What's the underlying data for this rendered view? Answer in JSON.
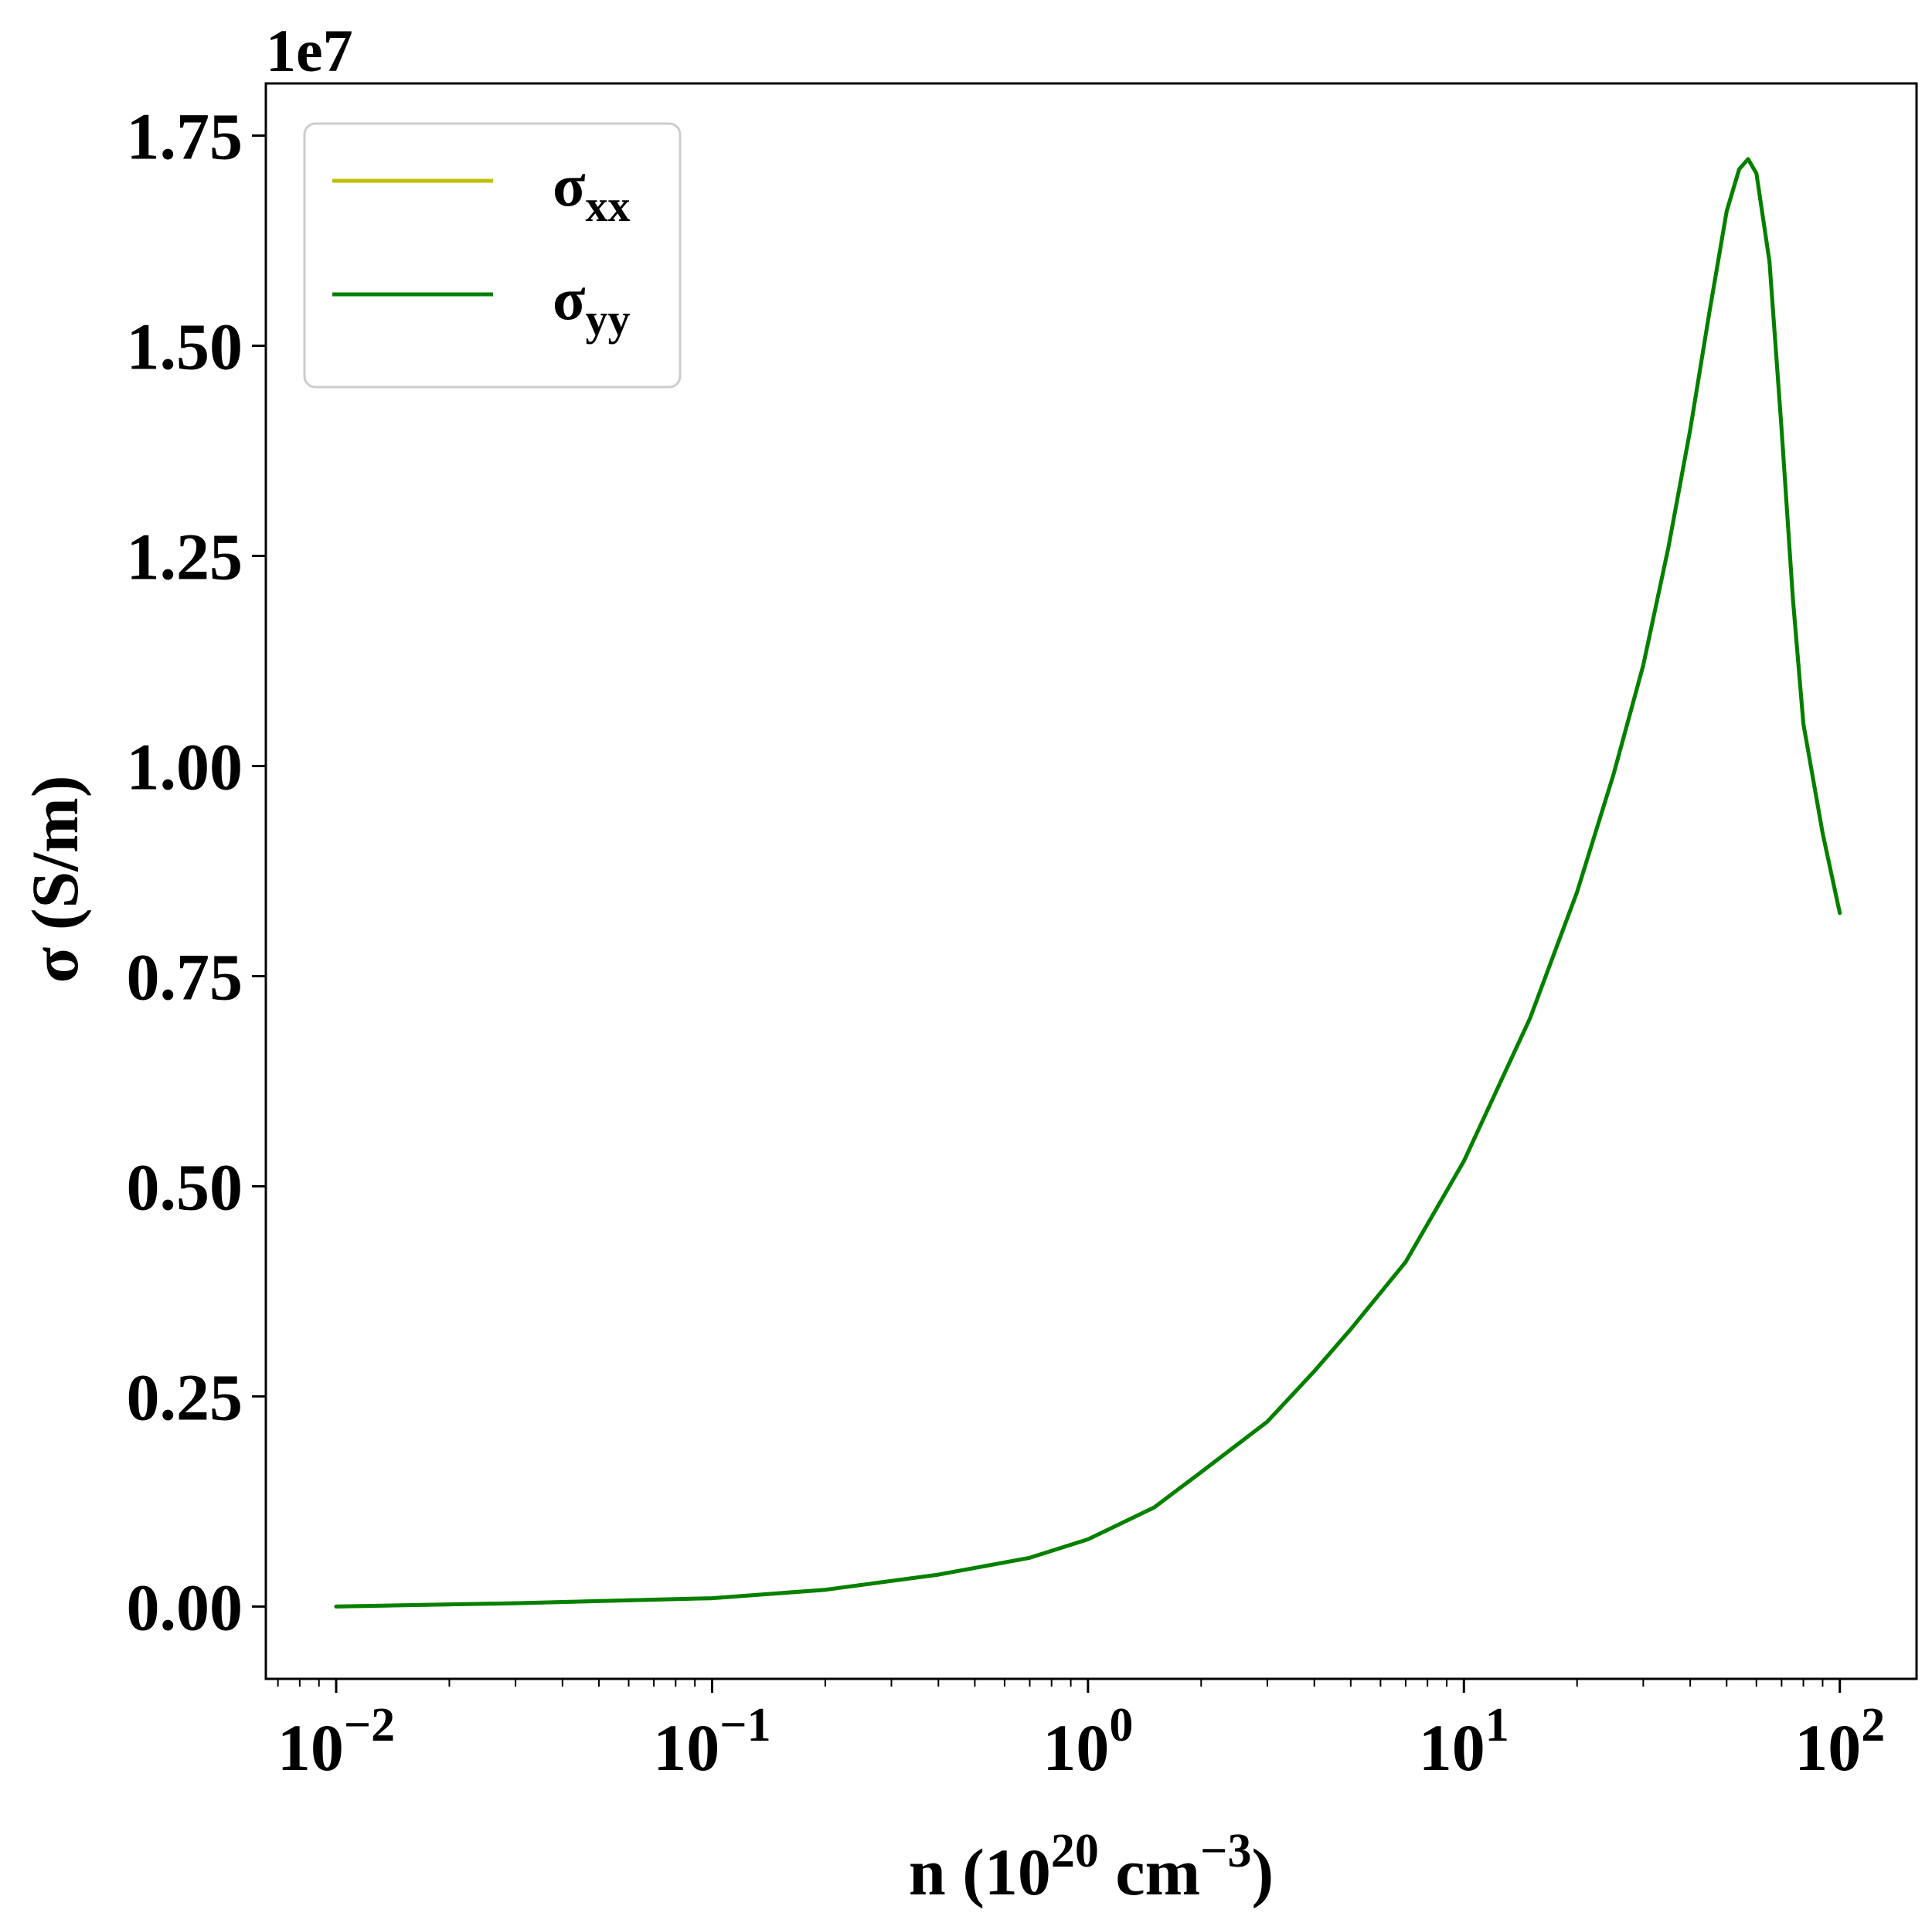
{
  "chart_data": {
    "type": "line",
    "title": "",
    "xlabel": {
      "base": "n (10",
      "sup1": "20",
      "mid": " cm",
      "sup2": "−3",
      "end": ")"
    },
    "ylabel": "σ (S/m)",
    "y_offset_label": "1e7",
    "xscale": "log",
    "xlim": [
      0.0065,
      160
    ],
    "ylim": [
      -0.086,
      1.812
    ],
    "y_multiplier": 10000000,
    "x_ticks": [
      {
        "value": 0.01,
        "base": "10",
        "exp": "−2"
      },
      {
        "value": 0.1,
        "base": "10",
        "exp": "−1"
      },
      {
        "value": 1,
        "base": "10",
        "exp": "0"
      },
      {
        "value": 10,
        "base": "10",
        "exp": "1"
      },
      {
        "value": 100,
        "base": "10",
        "exp": "2"
      }
    ],
    "y_ticks": [
      {
        "value": 0.0,
        "label": "0.00"
      },
      {
        "value": 0.25,
        "label": "0.25"
      },
      {
        "value": 0.5,
        "label": "0.50"
      },
      {
        "value": 0.75,
        "label": "0.75"
      },
      {
        "value": 1.0,
        "label": "1.00"
      },
      {
        "value": 1.25,
        "label": "1.25"
      },
      {
        "value": 1.5,
        "label": "1.50"
      },
      {
        "value": 1.75,
        "label": "1.75"
      }
    ],
    "grid": false,
    "legend_position": "upper-left",
    "series": [
      {
        "name": "σxx",
        "label_main": "σ",
        "label_sub": "xx",
        "color": "#bfbf00",
        "x": [
          0.01,
          0.03,
          0.1,
          0.2,
          0.4,
          0.7,
          1,
          1.5,
          2,
          3,
          4,
          5,
          7,
          10,
          15,
          20,
          25,
          30,
          35,
          40,
          45,
          50,
          54,
          57,
          60,
          65,
          70,
          75,
          80,
          90,
          100
        ],
        "y": [
          0.0,
          0.004,
          0.01,
          0.02,
          0.038,
          0.058,
          0.08,
          0.118,
          0.16,
          0.22,
          0.28,
          0.33,
          0.41,
          0.53,
          0.7,
          0.85,
          0.99,
          1.12,
          1.26,
          1.4,
          1.54,
          1.66,
          1.71,
          1.722,
          1.705,
          1.6,
          1.4,
          1.2,
          1.05,
          0.92,
          0.825
        ]
      },
      {
        "name": "σyy",
        "label_main": "σ",
        "label_sub": "yy",
        "color": "#008000",
        "x": [
          0.01,
          0.03,
          0.1,
          0.2,
          0.4,
          0.7,
          1,
          1.5,
          2,
          3,
          4,
          5,
          7,
          10,
          15,
          20,
          25,
          30,
          35,
          40,
          45,
          50,
          54,
          57,
          60,
          65,
          70,
          75,
          80,
          90,
          100
        ],
        "y": [
          0.0,
          0.004,
          0.01,
          0.02,
          0.038,
          0.058,
          0.08,
          0.118,
          0.16,
          0.22,
          0.28,
          0.33,
          0.41,
          0.53,
          0.7,
          0.85,
          0.99,
          1.12,
          1.26,
          1.4,
          1.54,
          1.66,
          1.71,
          1.722,
          1.705,
          1.6,
          1.4,
          1.2,
          1.05,
          0.92,
          0.825
        ]
      }
    ]
  }
}
